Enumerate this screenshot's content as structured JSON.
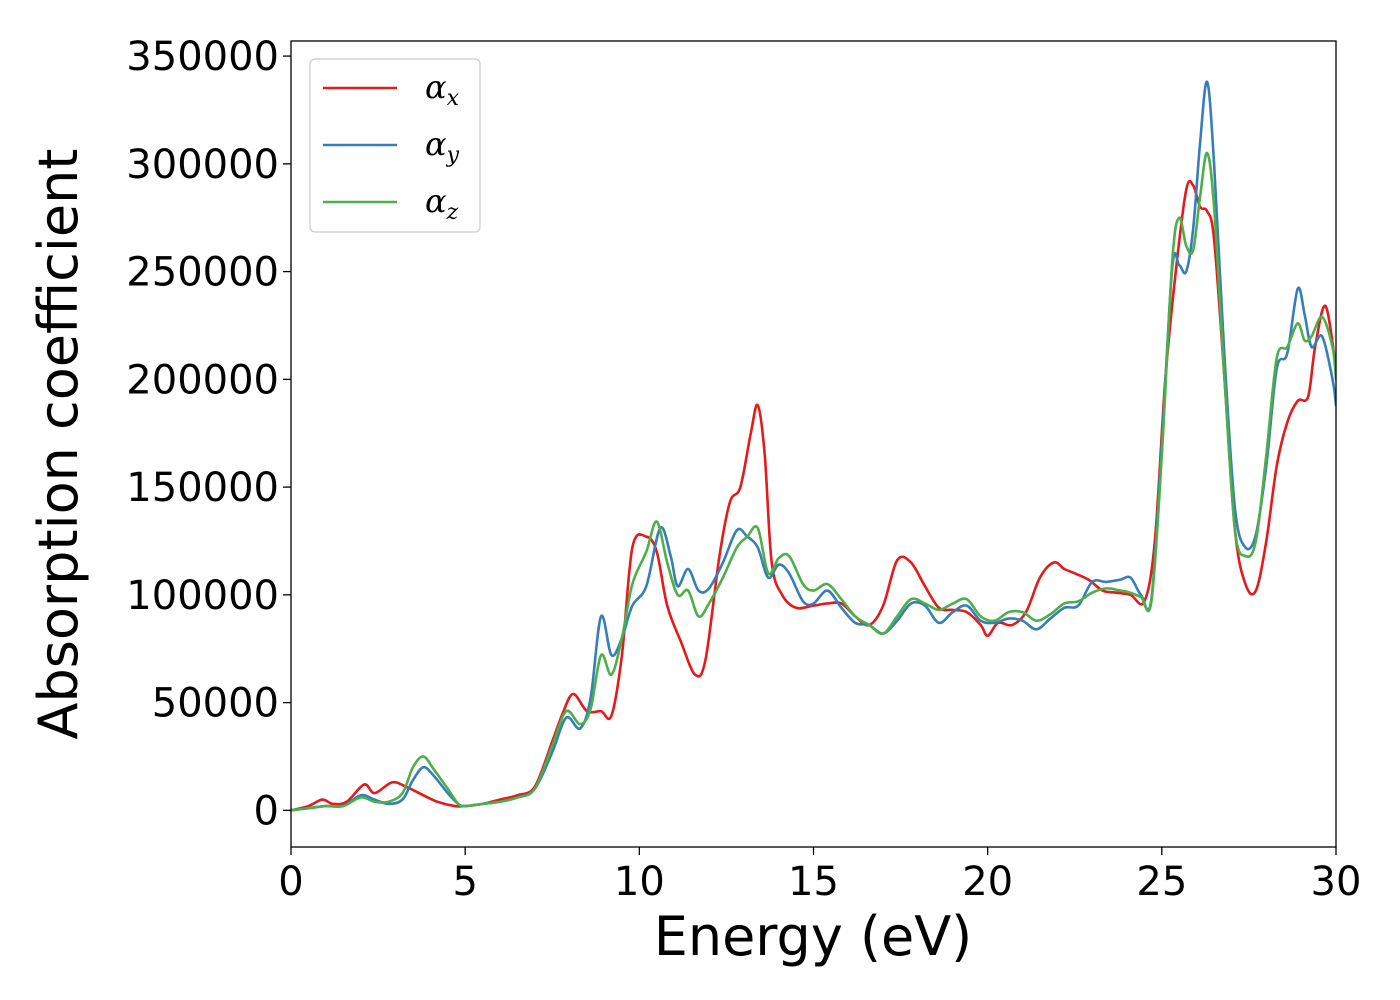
{
  "chart_data": {
    "type": "line",
    "xlabel": "Energy (eV)",
    "ylabel": "Absorption coefficient",
    "xlim": [
      0,
      30
    ],
    "ylim": [
      -17000,
      357000
    ],
    "xticks": [
      0,
      5,
      10,
      15,
      20,
      25,
      30
    ],
    "yticks": [
      0,
      50000,
      100000,
      150000,
      200000,
      250000,
      300000,
      350000
    ],
    "grid": false,
    "legend_position": "top-left",
    "series": [
      {
        "name": "αx",
        "legend_base": "α",
        "legend_sub": "x",
        "color": "#e41a1c",
        "x": [
          0,
          0.5,
          0.9,
          1.2,
          1.6,
          2.1,
          2.4,
          2.9,
          3.3,
          3.8,
          4.2,
          4.7,
          5.0,
          5.5,
          6.0,
          6.5,
          7.0,
          7.5,
          7.8,
          8.1,
          8.5,
          8.9,
          9.2,
          9.5,
          9.8,
          10.2,
          10.5,
          10.8,
          11.2,
          11.6,
          11.9,
          12.3,
          12.6,
          12.9,
          13.2,
          13.4,
          13.6,
          13.8,
          14.1,
          14.5,
          15.0,
          15.4,
          15.8,
          16.2,
          16.6,
          17.0,
          17.4,
          17.8,
          18.2,
          18.6,
          19.0,
          19.4,
          19.8,
          20.0,
          20.3,
          20.7,
          21.1,
          21.5,
          21.9,
          22.2,
          22.5,
          22.9,
          23.3,
          23.7,
          24.1,
          24.5,
          24.8,
          25.1,
          25.4,
          25.7,
          25.9,
          26.1,
          26.3,
          26.5,
          26.8,
          27.1,
          27.4,
          27.7,
          28.0,
          28.3,
          28.6,
          28.9,
          29.2,
          29.4,
          29.7,
          30.0
        ],
        "y": [
          0,
          2000,
          5000,
          3000,
          4000,
          12000,
          8000,
          13000,
          11000,
          7000,
          4000,
          2000,
          2000,
          3000,
          5000,
          7000,
          11000,
          32000,
          45000,
          54000,
          46000,
          46000,
          44000,
          72000,
          122000,
          127000,
          120000,
          95000,
          78000,
          63000,
          70000,
          118000,
          143000,
          150000,
          175000,
          188000,
          165000,
          115000,
          100000,
          94000,
          95000,
          96000,
          96000,
          90000,
          86000,
          95000,
          116000,
          115000,
          104000,
          94000,
          93000,
          92000,
          86000,
          81000,
          87000,
          86000,
          92000,
          108000,
          115000,
          112000,
          110000,
          107000,
          102000,
          101000,
          100000,
          97000,
          125000,
          200000,
          250000,
          288000,
          290000,
          280000,
          278000,
          265000,
          200000,
          130000,
          105000,
          102000,
          125000,
          160000,
          180000,
          190000,
          192000,
          215000,
          234000,
          205000
        ]
      },
      {
        "name": "αy",
        "legend_base": "α",
        "legend_sub": "y",
        "color": "#377eb8",
        "x": [
          0,
          0.5,
          1.0,
          1.5,
          2.0,
          2.4,
          2.8,
          3.2,
          3.5,
          3.8,
          4.1,
          4.5,
          4.8,
          5.0,
          5.5,
          6.0,
          6.5,
          7.0,
          7.5,
          7.9,
          8.3,
          8.6,
          8.9,
          9.2,
          9.5,
          9.8,
          10.2,
          10.6,
          10.9,
          11.1,
          11.4,
          11.7,
          12.0,
          12.4,
          12.8,
          13.1,
          13.4,
          13.7,
          14.0,
          14.3,
          14.7,
          15.0,
          15.4,
          15.8,
          16.2,
          16.6,
          17.0,
          17.4,
          17.8,
          18.2,
          18.6,
          19.0,
          19.4,
          19.8,
          20.2,
          20.6,
          21.0,
          21.4,
          21.8,
          22.2,
          22.6,
          23.0,
          23.4,
          23.8,
          24.1,
          24.4,
          24.7,
          25.0,
          25.3,
          25.5,
          25.7,
          25.9,
          26.1,
          26.3,
          26.5,
          26.8,
          27.1,
          27.4,
          27.7,
          28.0,
          28.3,
          28.6,
          28.9,
          29.1,
          29.3,
          29.6,
          29.9,
          30.0
        ],
        "y": [
          0,
          1000,
          2000,
          2000,
          7000,
          5000,
          3000,
          5000,
          14000,
          20000,
          16000,
          8000,
          3000,
          2000,
          3000,
          4000,
          6000,
          10000,
          27000,
          43000,
          38000,
          52000,
          90000,
          72000,
          80000,
          95000,
          104000,
          131000,
          118000,
          104000,
          112000,
          102000,
          103000,
          115000,
          130000,
          127000,
          122000,
          108000,
          114000,
          110000,
          97000,
          96000,
          102000,
          94000,
          87000,
          86000,
          82000,
          88000,
          96000,
          95000,
          87000,
          92000,
          95000,
          88000,
          87000,
          89000,
          88000,
          84000,
          89000,
          94000,
          95000,
          106000,
          106000,
          107000,
          108000,
          100000,
          98000,
          170000,
          252000,
          253000,
          250000,
          270000,
          310000,
          338000,
          300000,
          210000,
          140000,
          122000,
          128000,
          160000,
          205000,
          212000,
          242000,
          230000,
          215000,
          220000,
          200000,
          188000
        ]
      },
      {
        "name": "αz",
        "legend_base": "α",
        "legend_sub": "z",
        "color": "#4daf4a",
        "x": [
          0,
          0.5,
          1.0,
          1.5,
          2.0,
          2.4,
          2.8,
          3.2,
          3.5,
          3.8,
          4.1,
          4.5,
          4.8,
          5.0,
          5.5,
          6.0,
          6.5,
          7.0,
          7.5,
          7.9,
          8.3,
          8.6,
          8.9,
          9.2,
          9.5,
          9.8,
          10.2,
          10.5,
          10.8,
          11.1,
          11.4,
          11.7,
          12.0,
          12.4,
          12.8,
          13.1,
          13.4,
          13.7,
          14.0,
          14.3,
          14.7,
          15.0,
          15.4,
          15.8,
          16.2,
          16.6,
          17.0,
          17.4,
          17.8,
          18.2,
          18.6,
          19.0,
          19.4,
          19.8,
          20.2,
          20.6,
          21.0,
          21.4,
          21.8,
          22.2,
          22.6,
          23.0,
          23.4,
          23.8,
          24.1,
          24.4,
          24.7,
          25.0,
          25.3,
          25.5,
          25.7,
          25.9,
          26.1,
          26.3,
          26.5,
          26.8,
          27.1,
          27.4,
          27.7,
          28.0,
          28.3,
          28.6,
          28.9,
          29.1,
          29.3,
          29.6,
          29.9,
          30.0
        ],
        "y": [
          0,
          1000,
          2000,
          2000,
          6000,
          4000,
          4000,
          8000,
          20000,
          25000,
          19000,
          10000,
          3000,
          2000,
          3000,
          4000,
          6000,
          10000,
          30000,
          46000,
          40000,
          47000,
          72000,
          63000,
          80000,
          105000,
          120000,
          134000,
          115000,
          100000,
          102000,
          90000,
          96000,
          108000,
          122000,
          127000,
          131000,
          110000,
          117000,
          118000,
          105000,
          102000,
          105000,
          98000,
          90000,
          86000,
          82000,
          90000,
          98000,
          96000,
          93000,
          96000,
          98000,
          90000,
          88000,
          92000,
          92000,
          88000,
          91000,
          96000,
          97000,
          101000,
          103000,
          102000,
          101000,
          99000,
          97000,
          165000,
          255000,
          275000,
          262000,
          260000,
          285000,
          305000,
          280000,
          200000,
          130000,
          118000,
          125000,
          165000,
          210000,
          215000,
          226000,
          218000,
          220000,
          229000,
          215000,
          200000
        ]
      }
    ]
  }
}
